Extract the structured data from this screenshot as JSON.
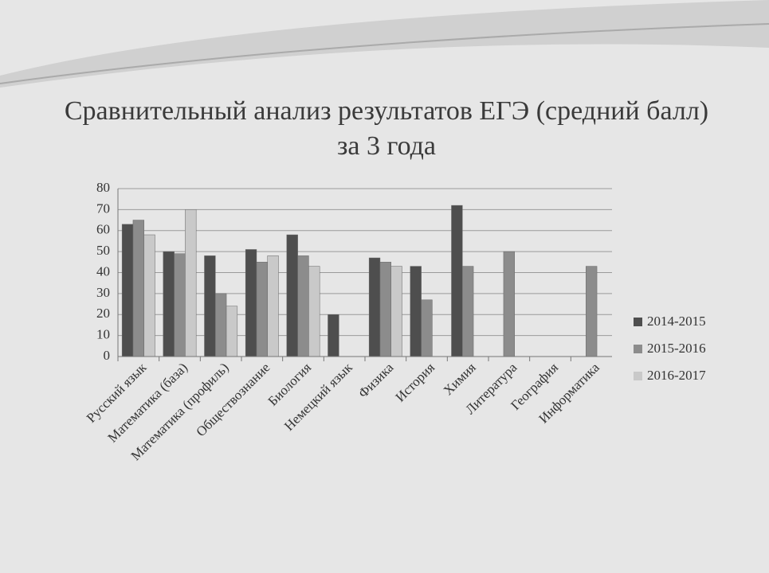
{
  "chart_data": {
    "type": "bar",
    "title": "Сравнительный анализ результатов ЕГЭ (средний балл) за 3 года",
    "categories": [
      "Русский язык",
      "Математика (база)",
      "Математика (профиль)",
      "Обществознание",
      "Биология",
      "Немецкий язык",
      "Физика",
      "История",
      "Химия",
      "Литература",
      "География",
      "Информатика"
    ],
    "series": [
      {
        "name": "2014-2015",
        "color": "#4e4e4e",
        "values": [
          63,
          50,
          48,
          51,
          58,
          20,
          47,
          43,
          72,
          null,
          null,
          null
        ]
      },
      {
        "name": "2015-2016",
        "color": "#8c8c8c",
        "values": [
          65,
          49,
          30,
          45,
          48,
          null,
          45,
          27,
          43,
          50,
          null,
          43
        ]
      },
      {
        "name": "2016-2017",
        "color": "#c9c9c9",
        "values": [
          58,
          70,
          24,
          48,
          43,
          null,
          43,
          null,
          null,
          null,
          null,
          null
        ]
      }
    ],
    "ylim": [
      0,
      80
    ],
    "yticks": [
      0,
      10,
      20,
      30,
      40,
      50,
      60,
      70,
      80
    ],
    "grid": true,
    "legend": "right"
  }
}
